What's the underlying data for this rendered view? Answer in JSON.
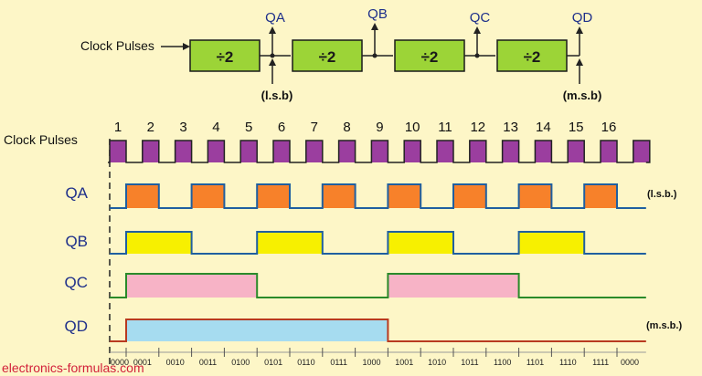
{
  "block_diagram": {
    "input_label": "Clock Pulses",
    "stages": [
      "÷2",
      "÷2",
      "÷2",
      "÷2"
    ],
    "outputs": [
      "QA",
      "QB",
      "QC",
      "QD"
    ],
    "lsb_label": "(l.s.b)",
    "msb_label": "(m.s.b)"
  },
  "timing": {
    "clock_label": "Clock Pulses",
    "pulse_numbers": [
      "1",
      "2",
      "3",
      "4",
      "5",
      "6",
      "7",
      "8",
      "9",
      "10",
      "11",
      "12",
      "13",
      "14",
      "15",
      "16"
    ],
    "signals": [
      {
        "name": "QA",
        "color": "#f7812a",
        "period": 2,
        "note": "(l.s.b.)"
      },
      {
        "name": "QB",
        "color": "#f7f000",
        "period": 4,
        "note": ""
      },
      {
        "name": "QC",
        "color": "#f7b3c6",
        "period": 8,
        "note": ""
      },
      {
        "name": "QD",
        "color": "#a6dcf0",
        "period": 16,
        "note": "(m.s.b.)"
      }
    ],
    "clock_color": "#9b3e9f",
    "binary_counts": [
      "0000",
      "0001",
      "0010",
      "0011",
      "0100",
      "0101",
      "0110",
      "0111",
      "1000",
      "1001",
      "1010",
      "1011",
      "1100",
      "1101",
      "1110",
      "1111",
      "0000"
    ]
  },
  "watermark": "electronics-formulas.com"
}
